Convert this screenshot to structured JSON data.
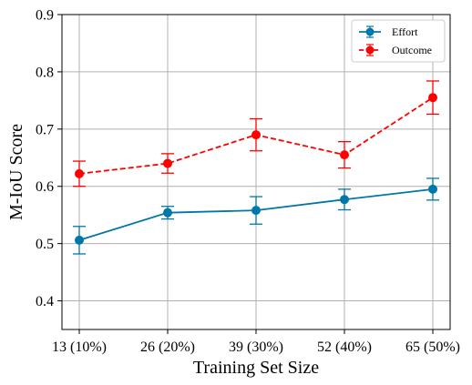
{
  "chart_data": {
    "type": "line",
    "categories": [
      "13 (10%)",
      "26 (20%)",
      "39 (30%)",
      "52 (40%)",
      "65 (50%)"
    ],
    "series": [
      {
        "name": "Effort",
        "color": "#0077aa",
        "line_style": "solid",
        "values": [
          0.506,
          0.554,
          0.558,
          0.577,
          0.595
        ],
        "errors": [
          0.024,
          0.011,
          0.024,
          0.018,
          0.019
        ]
      },
      {
        "name": "Outcome",
        "color": "#ff0000",
        "line_style": "dashed",
        "values": [
          0.622,
          0.64,
          0.69,
          0.655,
          0.755
        ],
        "errors": [
          0.022,
          0.017,
          0.028,
          0.023,
          0.029
        ]
      }
    ],
    "xlabel": "Training Set Size",
    "ylabel": "M-IoU Score",
    "ylim": [
      0.35,
      0.9
    ],
    "yticks": [
      0.4,
      0.5,
      0.6,
      0.7,
      0.8,
      0.9
    ],
    "yticklabels": [
      "0.4",
      "0.5",
      "0.6",
      "0.7",
      "0.8",
      "0.9"
    ],
    "grid": true,
    "legend_position": "upper right",
    "error_bars": true
  }
}
